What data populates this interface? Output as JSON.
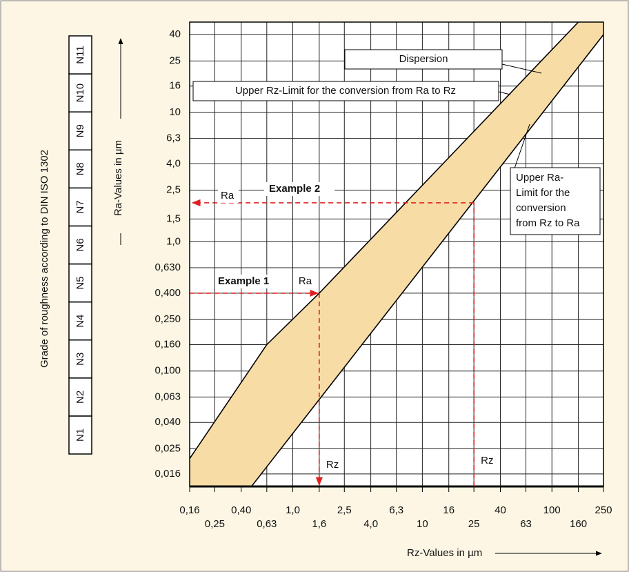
{
  "chart_data": {
    "type": "line",
    "x_axis_label": "Rz-Values in µm",
    "y_axis_label": "Ra-Values in µm",
    "log_x": true,
    "log_y": true,
    "grid": true,
    "xlim": [
      0.16,
      250
    ],
    "ylim": [
      0.0128,
      50
    ],
    "xticks": [
      {
        "value": 0.16,
        "label": "0,16"
      },
      {
        "value": 0.25,
        "label": "0,25"
      },
      {
        "value": 0.4,
        "label": "0,40"
      },
      {
        "value": 0.63,
        "label": "0,63"
      },
      {
        "value": 1.0,
        "label": "1,0"
      },
      {
        "value": 1.6,
        "label": "1,6"
      },
      {
        "value": 2.5,
        "label": "2,5"
      },
      {
        "value": 4.0,
        "label": "4,0"
      },
      {
        "value": 6.3,
        "label": "6,3"
      },
      10,
      16,
      25,
      40,
      63,
      100,
      160,
      250
    ],
    "yticks": [
      {
        "value": 0.016,
        "label": "0,016"
      },
      {
        "value": 0.025,
        "label": "0,025"
      },
      {
        "value": 0.04,
        "label": "0,040"
      },
      {
        "value": 0.063,
        "label": "0,063"
      },
      {
        "value": 0.1,
        "label": "0,100"
      },
      {
        "value": 0.16,
        "label": "0,160"
      },
      {
        "value": 0.25,
        "label": "0,250"
      },
      {
        "value": 0.4,
        "label": "0,400"
      },
      {
        "value": 0.63,
        "label": "0,630"
      },
      {
        "value": 1.0,
        "label": "1,0"
      },
      {
        "value": 1.5,
        "label": "1,5"
      },
      {
        "value": 2.5,
        "label": "2,5"
      },
      {
        "value": 4.0,
        "label": "4,0"
      },
      {
        "value": 6.3,
        "label": "6,3"
      },
      10,
      16,
      25,
      40
    ],
    "series": [
      {
        "color": "#000000",
        "x": [
          0.16,
          0.63,
          1.6,
          160
        ],
        "values": [
          0.021,
          0.16,
          0.4,
          50
        ]
      },
      {
        "color": "#000000",
        "x": [
          0.48,
          250
        ],
        "values": [
          0.0128,
          40
        ]
      }
    ],
    "band": {
      "label": "Dispersion",
      "color": "#f8dca6"
    },
    "callouts": [
      {
        "text": "Upper Rz-Limit for the conversion from Ra to Rz"
      },
      {
        "lines": [
          "Upper Ra-",
          "Limit for the",
          "conversion",
          "from Rz to Ra"
        ]
      }
    ],
    "examples": [
      {
        "label": "Example 1",
        "x": 1.6,
        "y": 0.4,
        "x_label": "Rz",
        "y_label": "Ra",
        "color": "#e02020"
      },
      {
        "label": "Example 2",
        "x": 25,
        "y": 2.0,
        "x_label": "Rz",
        "y_label": "Ra",
        "color": "#e02020"
      }
    ],
    "grade_scale": {
      "label": "Grade of roughness according to DIN ISO 1302",
      "grades": [
        "N1",
        "N2",
        "N3",
        "N4",
        "N5",
        "N6",
        "N7",
        "N8",
        "N9",
        "N10",
        "N11"
      ]
    }
  }
}
